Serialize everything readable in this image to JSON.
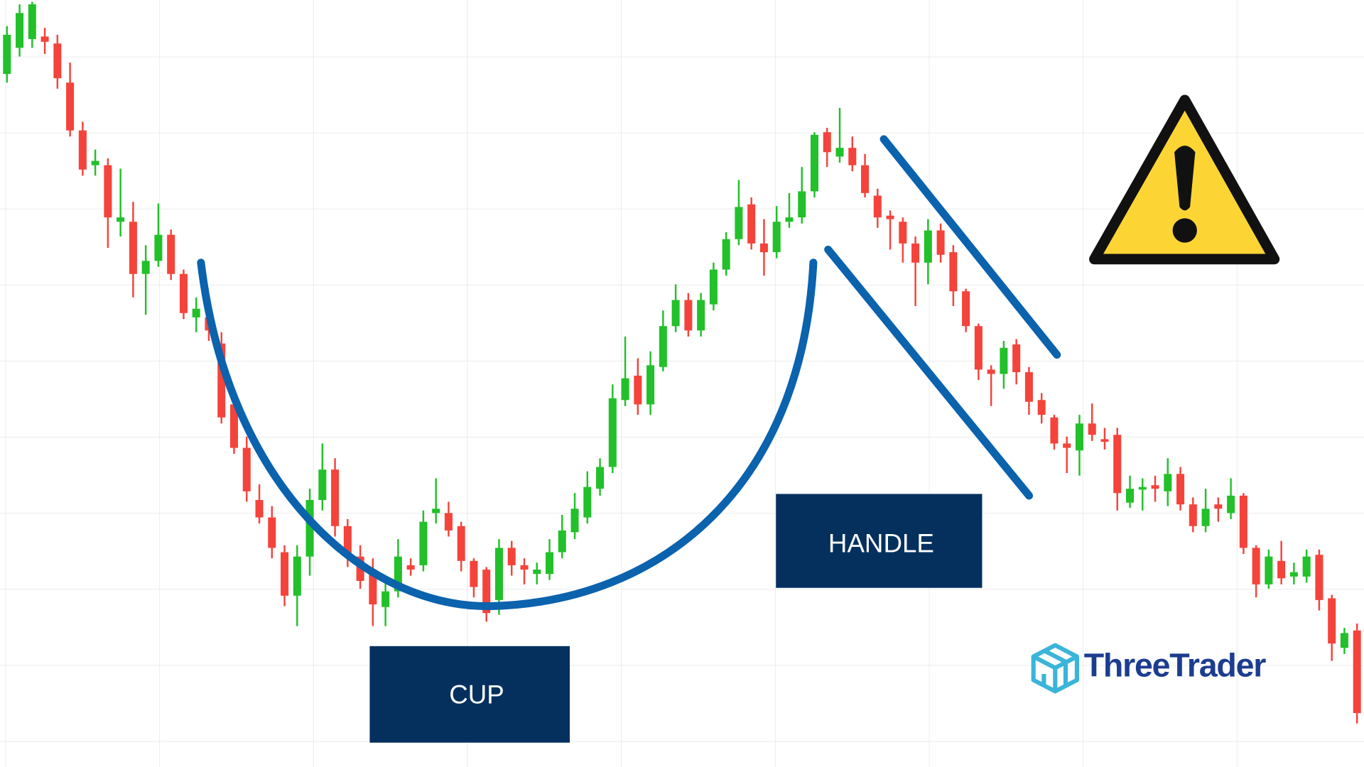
{
  "chart_data": {
    "type": "candlestick",
    "open": [
      797,
      827,
      837,
      840,
      832,
      787,
      732,
      692,
      692,
      627,
      627,
      567,
      582,
      612,
      567,
      517,
      517,
      487,
      417,
      367,
      307,
      287,
      247,
      197,
      242,
      307,
      342,
      277,
      242,
      227,
      184,
      202,
      232,
      232,
      292,
      292,
      277,
      237,
      227,
      192,
      252,
      232,
      222,
      222,
      247,
      270,
      287,
      320,
      345,
      422,
      450,
      417,
      460,
      507,
      537,
      502,
      532,
      572,
      607,
      647,
      602,
      592,
      627,
      632,
      662,
      730,
      702,
      712,
      692,
      657,
      634,
      627,
      602,
      580,
      617,
      592,
      547,
      507,
      457,
      452,
      486,
      454,
      422,
      402,
      372,
      364,
      395,
      377,
      382,
      304,
      319,
      324,
      317,
      337,
      302,
      277,
      302,
      292,
      312,
      252,
      210,
      237,
      219,
      219,
      244,
      194,
      137,
      157
    ],
    "high": [
      852,
      877,
      880,
      850,
      842,
      810,
      742,
      710,
      700,
      688,
      650,
      600,
      648,
      618,
      572,
      540,
      535,
      500,
      435,
      380,
      325,
      300,
      255,
      255,
      320,
      372,
      355,
      285,
      255,
      240,
      215,
      262,
      240,
      295,
      332,
      305,
      282,
      240,
      230,
      262,
      260,
      240,
      235,
      262,
      290,
      315,
      340,
      355,
      440,
      495,
      470,
      478,
      525,
      555,
      545,
      545,
      580,
      615,
      675,
      655,
      630,
      645,
      660,
      690,
      730,
      735,
      758,
      725,
      705,
      665,
      640,
      632,
      610,
      630,
      625,
      600,
      550,
      510,
      462,
      490,
      492,
      460,
      430,
      405,
      380,
      405,
      418,
      390,
      390,
      335,
      332,
      335,
      355,
      345,
      310,
      320,
      310,
      332,
      315,
      255,
      250,
      260,
      235,
      250,
      250,
      198,
      160,
      165
    ],
    "low": [
      787,
      817,
      827,
      820,
      780,
      725,
      680,
      680,
      597,
      610,
      540,
      520,
      575,
      560,
      515,
      500,
      490,
      395,
      360,
      305,
      280,
      240,
      185,
      162,
      220,
      295,
      265,
      230,
      205,
      162,
      162,
      195,
      220,
      225,
      280,
      265,
      225,
      195,
      167,
      175,
      220,
      210,
      210,
      215,
      240,
      262,
      280,
      312,
      338,
      415,
      405,
      405,
      455,
      500,
      495,
      495,
      525,
      565,
      600,
      595,
      565,
      585,
      620,
      625,
      655,
      690,
      695,
      685,
      655,
      620,
      595,
      580,
      530,
      555,
      580,
      530,
      500,
      445,
      415,
      435,
      440,
      405,
      395,
      365,
      338,
      335,
      375,
      365,
      295,
      298,
      295,
      305,
      300,
      295,
      270,
      270,
      282,
      285,
      245,
      195,
      205,
      210,
      210,
      212,
      180,
      122,
      130,
      50
    ],
    "close": [
      842,
      867,
      877,
      834,
      792,
      732,
      687,
      697,
      632,
      632,
      567,
      582,
      612,
      567,
      522,
      527,
      502,
      402,
      367,
      317,
      287,
      252,
      197,
      242,
      307,
      342,
      277,
      242,
      214,
      187,
      202,
      242,
      227,
      282,
      297,
      272,
      237,
      207,
      177,
      252,
      232,
      227,
      227,
      247,
      272,
      297,
      322,
      345,
      424,
      447,
      417,
      462,
      507,
      537,
      502,
      537,
      572,
      607,
      644,
      602,
      592,
      627,
      632,
      662,
      727,
      707,
      712,
      692,
      660,
      632,
      630,
      602,
      580,
      617,
      589,
      547,
      507,
      457,
      452,
      482,
      454,
      420,
      405,
      372,
      367,
      395,
      382,
      374,
      315,
      320,
      322,
      320,
      337,
      302,
      277,
      297,
      297,
      312,
      252,
      210,
      242,
      217,
      224,
      242,
      192,
      142,
      154,
      62
    ],
    "ylim": [
      0,
      882
    ],
    "up_color": "#22c02a",
    "down_color": "#f4433b",
    "annotations": {
      "cup": "CUP",
      "handle": "HANDLE"
    }
  },
  "logo": "ThreeTrader"
}
